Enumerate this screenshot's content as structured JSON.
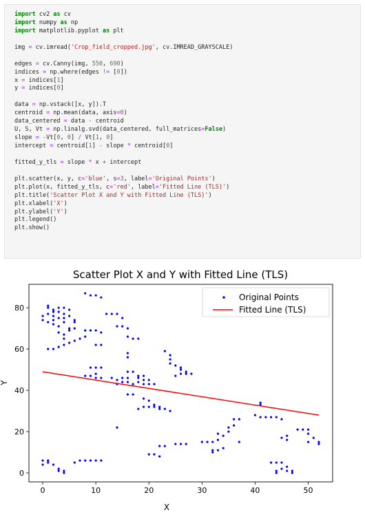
{
  "code_cell": {
    "lines": [
      [
        {
          "t": "import",
          "c": "kw"
        },
        {
          "t": " cv2 "
        },
        {
          "t": "as",
          "c": "kw"
        },
        {
          "t": " cv"
        }
      ],
      [
        {
          "t": "import",
          "c": "kw"
        },
        {
          "t": " numpy "
        },
        {
          "t": "as",
          "c": "kw"
        },
        {
          "t": " np"
        }
      ],
      [
        {
          "t": "import",
          "c": "kw"
        },
        {
          "t": " matplotlib.pyplot "
        },
        {
          "t": "as",
          "c": "kw"
        },
        {
          "t": " plt"
        }
      ],
      [],
      [
        {
          "t": "img "
        },
        {
          "t": "=",
          "c": "op"
        },
        {
          "t": " cv.imread("
        },
        {
          "t": "'Crop_field_cropped.jpg'",
          "c": "str"
        },
        {
          "t": ", cv.IMREAD_GRAYSCALE)"
        }
      ],
      [],
      [
        {
          "t": "edges "
        },
        {
          "t": "=",
          "c": "op"
        },
        {
          "t": " cv.Canny(img, "
        },
        {
          "t": "550",
          "c": "num"
        },
        {
          "t": ", "
        },
        {
          "t": "690",
          "c": "num"
        },
        {
          "t": ")"
        }
      ],
      [
        {
          "t": "indices "
        },
        {
          "t": "=",
          "c": "op"
        },
        {
          "t": " np.where(edges "
        },
        {
          "t": "!=",
          "c": "op"
        },
        {
          "t": " ["
        },
        {
          "t": "0",
          "c": "num"
        },
        {
          "t": "])"
        }
      ],
      [
        {
          "t": "x "
        },
        {
          "t": "=",
          "c": "op"
        },
        {
          "t": " indices["
        },
        {
          "t": "1",
          "c": "num"
        },
        {
          "t": "]"
        }
      ],
      [
        {
          "t": "y "
        },
        {
          "t": "=",
          "c": "op"
        },
        {
          "t": " indices["
        },
        {
          "t": "0",
          "c": "num"
        },
        {
          "t": "]"
        }
      ],
      [],
      [
        {
          "t": "data "
        },
        {
          "t": "=",
          "c": "op"
        },
        {
          "t": " np.vstack([x, y]).T"
        }
      ],
      [
        {
          "t": "centroid "
        },
        {
          "t": "=",
          "c": "op"
        },
        {
          "t": " np.mean(data, axis"
        },
        {
          "t": "=",
          "c": "op"
        },
        {
          "t": "0",
          "c": "num"
        },
        {
          "t": ")"
        }
      ],
      [
        {
          "t": "data_centered "
        },
        {
          "t": "=",
          "c": "op"
        },
        {
          "t": " data "
        },
        {
          "t": "-",
          "c": "op"
        },
        {
          "t": " centroid"
        }
      ],
      [
        {
          "t": "U, S, Vt "
        },
        {
          "t": "=",
          "c": "op"
        },
        {
          "t": " np.linalg.svd(data_centered, full_matrices"
        },
        {
          "t": "=",
          "c": "op"
        },
        {
          "t": "False",
          "c": "kw"
        },
        {
          "t": ")"
        }
      ],
      [
        {
          "t": "slope "
        },
        {
          "t": "=",
          "c": "op"
        },
        {
          "t": " "
        },
        {
          "t": "-",
          "c": "op"
        },
        {
          "t": "Vt["
        },
        {
          "t": "0",
          "c": "num"
        },
        {
          "t": ", "
        },
        {
          "t": "0",
          "c": "num"
        },
        {
          "t": "] "
        },
        {
          "t": "/",
          "c": "op"
        },
        {
          "t": " Vt["
        },
        {
          "t": "1",
          "c": "num"
        },
        {
          "t": ", "
        },
        {
          "t": "0",
          "c": "num"
        },
        {
          "t": "]"
        }
      ],
      [
        {
          "t": "intercept "
        },
        {
          "t": "=",
          "c": "op"
        },
        {
          "t": " centroid["
        },
        {
          "t": "1",
          "c": "num"
        },
        {
          "t": "] "
        },
        {
          "t": "-",
          "c": "op"
        },
        {
          "t": " slope "
        },
        {
          "t": "*",
          "c": "op"
        },
        {
          "t": " centroid["
        },
        {
          "t": "0",
          "c": "num"
        },
        {
          "t": "]"
        }
      ],
      [],
      [
        {
          "t": "fitted_y_tls "
        },
        {
          "t": "=",
          "c": "op"
        },
        {
          "t": " slope "
        },
        {
          "t": "*",
          "c": "op"
        },
        {
          "t": " x "
        },
        {
          "t": "+",
          "c": "op"
        },
        {
          "t": " intercept"
        }
      ],
      [],
      [
        {
          "t": "plt.scatter(x, y, c"
        },
        {
          "t": "=",
          "c": "op"
        },
        {
          "t": "'blue'",
          "c": "str"
        },
        {
          "t": ", s"
        },
        {
          "t": "=",
          "c": "op"
        },
        {
          "t": "3",
          "c": "num"
        },
        {
          "t": ", label"
        },
        {
          "t": "=",
          "c": "op"
        },
        {
          "t": "'Original Points'",
          "c": "str"
        },
        {
          "t": ")"
        }
      ],
      [
        {
          "t": "plt.plot(x, fitted_y_tls, c"
        },
        {
          "t": "=",
          "c": "op"
        },
        {
          "t": "'red'",
          "c": "str"
        },
        {
          "t": ", label"
        },
        {
          "t": "=",
          "c": "op"
        },
        {
          "t": "'Fitted Line (TLS)'",
          "c": "str"
        },
        {
          "t": ")"
        }
      ],
      [
        {
          "t": "plt.title("
        },
        {
          "t": "'Scatter Plot X and Y with Fitted Line (TLS)'",
          "c": "str"
        },
        {
          "t": ")"
        }
      ],
      [
        {
          "t": "plt.xlabel("
        },
        {
          "t": "'X'",
          "c": "str"
        },
        {
          "t": ")"
        }
      ],
      [
        {
          "t": "plt.ylabel("
        },
        {
          "t": "'Y'",
          "c": "str"
        },
        {
          "t": ")"
        }
      ],
      [
        {
          "t": "plt.legend()"
        }
      ],
      [
        {
          "t": "plt.show()"
        }
      ]
    ]
  },
  "colors": {
    "scatter": "#0000ff",
    "line": "#ff0000",
    "keyword": "#008000",
    "string": "#ba2121",
    "number": "#666666",
    "operator": "#aa22ff"
  },
  "chart_data": {
    "type": "scatter",
    "title": "Scatter Plot X and Y with Fitted Line (TLS)",
    "xlabel": "X",
    "ylabel": "Y",
    "xlim": [
      -2.6,
      54.6
    ],
    "ylim": [
      -4.35,
      91.35
    ],
    "xticks": [
      0,
      10,
      20,
      30,
      40,
      50
    ],
    "yticks": [
      0,
      20,
      40,
      60,
      80
    ],
    "grid": false,
    "legend_position": "top-right",
    "series": [
      {
        "name": "Original Points",
        "kind": "scatter",
        "color": "#0000ff",
        "points": [
          [
            0,
            76
          ],
          [
            0,
            74
          ],
          [
            1,
            81
          ],
          [
            1,
            80
          ],
          [
            1,
            77
          ],
          [
            1,
            73
          ],
          [
            2,
            79
          ],
          [
            2,
            78
          ],
          [
            2,
            76
          ],
          [
            2,
            74
          ],
          [
            2,
            72
          ],
          [
            3,
            80
          ],
          [
            3,
            78
          ],
          [
            3,
            75
          ],
          [
            3,
            71
          ],
          [
            4,
            80
          ],
          [
            4,
            77
          ],
          [
            4,
            75
          ],
          [
            4,
            73
          ],
          [
            5,
            79
          ],
          [
            5,
            76
          ],
          [
            6,
            74
          ],
          [
            6,
            73
          ],
          [
            3,
            68
          ],
          [
            4,
            67
          ],
          [
            4,
            65
          ],
          [
            5,
            70
          ],
          [
            5,
            69
          ],
          [
            6,
            70
          ],
          [
            8,
            87
          ],
          [
            9,
            86
          ],
          [
            10,
            86
          ],
          [
            11,
            85
          ],
          [
            8,
            69
          ],
          [
            9,
            69
          ],
          [
            10,
            69
          ],
          [
            11,
            68
          ],
          [
            10,
            62
          ],
          [
            11,
            62
          ],
          [
            12,
            77
          ],
          [
            13,
            77
          ],
          [
            14,
            77
          ],
          [
            15,
            75
          ],
          [
            14,
            71
          ],
          [
            15,
            71
          ],
          [
            16,
            70
          ],
          [
            16,
            66
          ],
          [
            17,
            65
          ],
          [
            18,
            65
          ],
          [
            1,
            60
          ],
          [
            2,
            60
          ],
          [
            3,
            61
          ],
          [
            4,
            62
          ],
          [
            5,
            63
          ],
          [
            6,
            64
          ],
          [
            7,
            65
          ],
          [
            8,
            66
          ],
          [
            9,
            51
          ],
          [
            10,
            51
          ],
          [
            11,
            51
          ],
          [
            8,
            47
          ],
          [
            9,
            47
          ],
          [
            10,
            48
          ],
          [
            10,
            46
          ],
          [
            11,
            46
          ],
          [
            13,
            46
          ],
          [
            14,
            45
          ],
          [
            14,
            43
          ],
          [
            15,
            46
          ],
          [
            15,
            44
          ],
          [
            16,
            58
          ],
          [
            16,
            56
          ],
          [
            16,
            49
          ],
          [
            16,
            46
          ],
          [
            16,
            44
          ],
          [
            17,
            49
          ],
          [
            17,
            43
          ],
          [
            18,
            47
          ],
          [
            18,
            46
          ],
          [
            18,
            44
          ],
          [
            19,
            47
          ],
          [
            19,
            45
          ],
          [
            19,
            43
          ],
          [
            20,
            45
          ],
          [
            20,
            43
          ],
          [
            21,
            43
          ],
          [
            16,
            38
          ],
          [
            17,
            38
          ],
          [
            18,
            31
          ],
          [
            19,
            32
          ],
          [
            19,
            36
          ],
          [
            20,
            35
          ],
          [
            20,
            32
          ],
          [
            21,
            33
          ],
          [
            21,
            32
          ],
          [
            22,
            32
          ],
          [
            22,
            31
          ],
          [
            23,
            31
          ],
          [
            24,
            30
          ],
          [
            23,
            59
          ],
          [
            24,
            57
          ],
          [
            24,
            55
          ],
          [
            24,
            53
          ],
          [
            25,
            52
          ],
          [
            25,
            47
          ],
          [
            26,
            51
          ],
          [
            26,
            50
          ],
          [
            26,
            48
          ],
          [
            27,
            49
          ],
          [
            27,
            48
          ],
          [
            28,
            48
          ],
          [
            14,
            22
          ],
          [
            20,
            9
          ],
          [
            21,
            9
          ],
          [
            22,
            8
          ],
          [
            22,
            13
          ],
          [
            23,
            13
          ],
          [
            25,
            14
          ],
          [
            26,
            14
          ],
          [
            27,
            14
          ],
          [
            30,
            15
          ],
          [
            31,
            15
          ],
          [
            32,
            15
          ],
          [
            32,
            11
          ],
          [
            32,
            10
          ],
          [
            33,
            11
          ],
          [
            33,
            16
          ],
          [
            33,
            19
          ],
          [
            34,
            12
          ],
          [
            34,
            18
          ],
          [
            35,
            20
          ],
          [
            35,
            22
          ],
          [
            36,
            23
          ],
          [
            36,
            26
          ],
          [
            37,
            26
          ],
          [
            37,
            15
          ],
          [
            40,
            28
          ],
          [
            41,
            27
          ],
          [
            41,
            34
          ],
          [
            41,
            33
          ],
          [
            42,
            27
          ],
          [
            43,
            27
          ],
          [
            44,
            27
          ],
          [
            45,
            26
          ],
          [
            45,
            17
          ],
          [
            46,
            18
          ],
          [
            46,
            16
          ],
          [
            48,
            21
          ],
          [
            49,
            21
          ],
          [
            50,
            21
          ],
          [
            50,
            19
          ],
          [
            50,
            15
          ],
          [
            51,
            17
          ],
          [
            52,
            15
          ],
          [
            52,
            14
          ],
          [
            0,
            6
          ],
          [
            0,
            4
          ],
          [
            1,
            6
          ],
          [
            1,
            5
          ],
          [
            2,
            4
          ],
          [
            3,
            2
          ],
          [
            3,
            1
          ],
          [
            4,
            1
          ],
          [
            4,
            0
          ],
          [
            6,
            5
          ],
          [
            7,
            6
          ],
          [
            8,
            6
          ],
          [
            9,
            6
          ],
          [
            10,
            6
          ],
          [
            11,
            6
          ],
          [
            43,
            5
          ],
          [
            44,
            5
          ],
          [
            44,
            1
          ],
          [
            44,
            0
          ],
          [
            45,
            5
          ],
          [
            45,
            2
          ],
          [
            46,
            3
          ],
          [
            46,
            1
          ],
          [
            47,
            1
          ],
          [
            47,
            0
          ]
        ]
      },
      {
        "name": "Fitted Line (TLS)",
        "kind": "line",
        "color": "#ff0000",
        "points": [
          [
            0,
            49
          ],
          [
            52,
            28
          ]
        ]
      }
    ]
  }
}
